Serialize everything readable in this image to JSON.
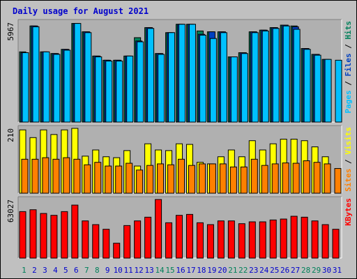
{
  "chart_data": {
    "type": "bar",
    "title": "Daily usage for August 2021",
    "categories": [
      "1",
      "2",
      "3",
      "4",
      "5",
      "6",
      "7",
      "8",
      "9",
      "10",
      "11",
      "12",
      "13",
      "14",
      "15",
      "16",
      "17",
      "18",
      "19",
      "20",
      "21",
      "22",
      "23",
      "24",
      "25",
      "26",
      "27",
      "28",
      "29",
      "30",
      "31"
    ],
    "weekend_days": [
      "1",
      "7",
      "8",
      "14",
      "15",
      "21",
      "22",
      "28",
      "29"
    ],
    "panels": [
      {
        "name": "top",
        "ymax_label": "5967",
        "ymax": 5967,
        "series": [
          {
            "name": "Hits",
            "color": "#00805a",
            "values": [
              4200,
              5750,
              4200,
              4100,
              4350,
              5900,
              5400,
              3950,
              3700,
              3700,
              3950,
              5050,
              5650,
              4100,
              5350,
              5850,
              5850,
              5450,
              5400,
              5400,
              3900,
              4150,
              5400,
              5500,
              5650,
              5800,
              5750,
              4400,
              4050,
              3750,
              null
            ]
          },
          {
            "name": "Files",
            "color": "#0040c0",
            "values": [
              4150,
              5750,
              4200,
              4100,
              4350,
              5900,
              5400,
              3950,
              3700,
              3700,
              3950,
              4850,
              5650,
              4100,
              5350,
              5850,
              5850,
              5250,
              5400,
              5400,
              3900,
              4150,
              5400,
              5500,
              5650,
              5800,
              5700,
              4400,
              4050,
              3750,
              null
            ]
          },
          {
            "name": "Pages",
            "color": "#00c0ff",
            "values": [
              4150,
              5700,
              4200,
              4050,
              4300,
              5900,
              5350,
              3900,
              3650,
              3650,
              3950,
              4800,
              5600,
              4050,
              5350,
              5850,
              5850,
              5200,
              5000,
              5350,
              3900,
              4100,
              5350,
              5450,
              5600,
              5750,
              5550,
              4350,
              4000,
              3750,
              3700
            ]
          }
        ]
      },
      {
        "name": "middle",
        "ymax_label": "210",
        "ymax": 210,
        "series": [
          {
            "name": "Visits",
            "color": "#ffff00",
            "values": [
              205,
              180,
              205,
              190,
              205,
              210,
              120,
              140,
              118,
              115,
              138,
              88,
              160,
              140,
              138,
              160,
              158,
              100,
              95,
              118,
              140,
              118,
              170,
              140,
              160,
              175,
              175,
              170,
              150,
              118,
              null
            ]
          },
          {
            "name": "Sites",
            "color": "#ff8000",
            "values": [
              110,
              110,
              115,
              110,
              115,
              110,
              92,
              100,
              88,
              88,
              97,
              75,
              90,
              95,
              92,
              110,
              90,
              95,
              95,
              95,
              85,
              85,
              110,
              90,
              95,
              98,
              97,
              105,
              100,
              95,
              80
            ]
          }
        ]
      },
      {
        "name": "bottom",
        "ymax_label": "63027",
        "ymax": 63027,
        "series": [
          {
            "name": "KBytes",
            "color": "#ff0000",
            "values": [
              50000,
              52000,
              48000,
              46000,
              50000,
              57000,
              40000,
              36000,
              31000,
              16000,
              35000,
              40000,
              44000,
              63027,
              38000,
              46000,
              47000,
              38000,
              36000,
              40000,
              40000,
              37000,
              39000,
              39000,
              41000,
              42000,
              45000,
              44000,
              40000,
              36000,
              31000
            ]
          }
        ]
      }
    ],
    "legend": {
      "top": [
        {
          "text": "Pages",
          "color": "#00c0ff"
        },
        {
          "text": " / ",
          "color": "#000000"
        },
        {
          "text": "Files",
          "color": "#0040c0"
        },
        {
          "text": " / ",
          "color": "#000000"
        },
        {
          "text": "Hits",
          "color": "#00805a"
        }
      ],
      "middle": [
        {
          "text": "Sites",
          "color": "#ff8000"
        },
        {
          "text": " / ",
          "color": "#000000"
        },
        {
          "text": "Visits",
          "color": "#ffff00"
        }
      ],
      "bottom": [
        {
          "text": "KBytes",
          "color": "#ff0000"
        }
      ]
    },
    "colors": {
      "weekday_label": "#0000cc",
      "weekend_label": "#00805a",
      "background": "#c0c0c0",
      "panel_bg": "#b0b0b0"
    }
  }
}
